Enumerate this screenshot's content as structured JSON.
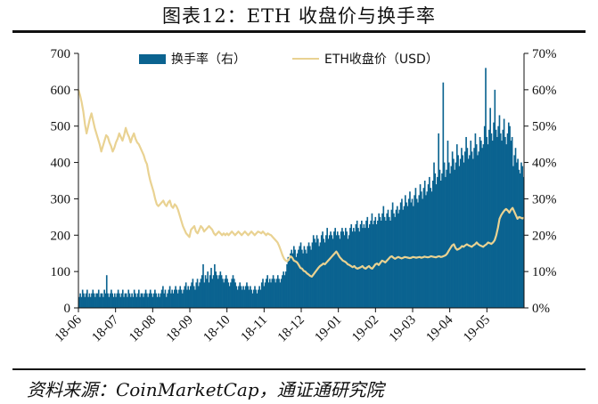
{
  "title": "图表12：ETH 收盘价与换手率",
  "source": "资料来源：CoinMarketCap，通证通研究院",
  "colors": {
    "turnover": "#0b6390",
    "price": "#e9d292",
    "axis": "#111111"
  },
  "chart_data": {
    "type": "bar",
    "x_tick_labels": [
      "18-06",
      "18-07",
      "18-08",
      "18-09",
      "18-10",
      "18-11",
      "18-12",
      "19-01",
      "19-02",
      "19-03",
      "19-04",
      "19-05"
    ],
    "left_axis": {
      "ylim": [
        0,
        700
      ],
      "ticks": [
        0,
        100,
        200,
        300,
        400,
        500,
        600,
        700
      ],
      "tick_labels": [
        "0",
        "100",
        "200",
        "300",
        "400",
        "500",
        "600",
        "700"
      ]
    },
    "right_axis": {
      "ylim": [
        0,
        70
      ],
      "ticks": [
        0,
        10,
        20,
        30,
        40,
        50,
        60,
        70
      ],
      "tick_labels": [
        "0%",
        "10%",
        "20%",
        "30%",
        "40%",
        "50%",
        "60%",
        "70%"
      ]
    },
    "legend": {
      "placement": "top",
      "entries": [
        "换手率（右）",
        "ETH收盘价（USD）"
      ]
    },
    "grid": false,
    "series": [
      {
        "name": "换手率（右）",
        "type": "bar",
        "axis": "right",
        "unit": "%",
        "values": [
          3,
          4,
          3,
          5,
          4,
          3,
          4,
          5,
          3,
          4,
          3,
          4,
          5,
          4,
          3,
          4,
          4,
          5,
          3,
          4,
          4,
          3,
          5,
          4,
          9,
          4,
          3,
          4,
          5,
          4,
          3,
          4,
          3,
          4,
          5,
          4,
          3,
          4,
          5,
          3,
          4,
          4,
          3,
          5,
          4,
          3,
          4,
          3,
          5,
          4,
          3,
          4,
          5,
          3,
          4,
          4,
          3,
          4,
          5,
          4,
          3,
          4,
          5,
          4,
          3,
          4,
          5,
          4,
          3,
          4,
          3,
          4,
          5,
          6,
          4,
          5,
          3,
          4,
          5,
          6,
          4,
          5,
          4,
          5,
          6,
          5,
          4,
          5,
          6,
          5,
          4,
          5,
          6,
          7,
          5,
          6,
          5,
          6,
          7,
          8,
          6,
          5,
          7,
          8,
          6,
          7,
          8,
          9,
          12,
          7,
          9,
          8,
          10,
          7,
          9,
          11,
          8,
          9,
          12,
          10,
          9,
          8,
          9,
          10,
          9,
          8,
          7,
          8,
          9,
          8,
          7,
          6,
          7,
          8,
          9,
          8,
          7,
          6,
          5,
          6,
          7,
          6,
          5,
          6,
          5,
          6,
          7,
          6,
          5,
          6,
          5,
          4,
          5,
          6,
          5,
          4,
          5,
          6,
          5,
          7,
          8,
          6,
          7,
          8,
          9,
          7,
          8,
          7,
          8,
          9,
          8,
          7,
          8,
          9,
          8,
          7,
          8,
          9,
          10,
          9,
          10,
          12,
          14,
          13,
          15,
          16,
          15,
          17,
          16,
          14,
          15,
          16,
          17,
          18,
          16,
          15,
          17,
          16,
          15,
          17,
          18,
          17,
          16,
          18,
          20,
          19,
          18,
          20,
          19,
          17,
          18,
          20,
          21,
          19,
          18,
          20,
          22,
          19,
          20,
          21,
          20,
          19,
          21,
          22,
          20,
          21,
          20,
          19,
          21,
          22,
          21,
          20,
          22,
          21,
          19,
          20,
          22,
          23,
          21,
          22,
          21,
          23,
          24,
          22,
          21,
          23,
          24,
          22,
          23,
          22,
          24,
          25,
          22,
          23,
          24,
          26,
          23,
          24,
          25,
          23,
          24,
          26,
          25,
          24,
          26,
          28,
          25,
          24,
          26,
          27,
          25,
          24,
          27,
          29,
          26,
          25,
          27,
          28,
          26,
          27,
          29,
          30,
          27,
          28,
          31,
          29,
          28,
          30,
          32,
          29,
          30,
          28,
          31,
          33,
          30,
          29,
          31,
          34,
          32,
          30,
          33,
          35,
          31,
          32,
          34,
          36,
          33,
          32,
          35,
          40,
          37,
          34,
          36,
          48,
          38,
          35,
          37,
          62,
          40,
          36,
          38,
          46,
          40,
          37,
          39,
          43,
          41,
          38,
          40,
          45,
          42,
          39,
          41,
          44,
          42,
          40,
          43,
          47,
          44,
          41,
          42,
          46,
          43,
          41,
          44,
          48,
          45,
          42,
          43,
          47,
          46,
          44,
          45,
          50,
          66,
          47,
          45,
          49,
          55,
          48,
          46,
          51,
          60,
          49,
          47,
          50,
          53,
          48,
          46,
          49,
          52,
          47,
          45,
          48,
          51,
          50,
          46,
          47,
          39,
          42,
          44,
          40,
          41,
          38,
          37,
          40,
          39,
          36
        ]
      },
      {
        "name": "ETH收盘价（USD）",
        "type": "line",
        "axis": "left",
        "unit": "USD",
        "values": [
          600,
          585,
          565,
          540,
          505,
          480,
          500,
          520,
          535,
          515,
          495,
          480,
          465,
          450,
          430,
          445,
          460,
          475,
          470,
          455,
          445,
          430,
          440,
          455,
          465,
          480,
          470,
          460,
          475,
          495,
          480,
          470,
          455,
          470,
          480,
          465,
          455,
          450,
          440,
          430,
          420,
          405,
          395,
          370,
          350,
          335,
          320,
          300,
          285,
          280,
          285,
          290,
          295,
          285,
          280,
          290,
          295,
          280,
          275,
          285,
          280,
          270,
          255,
          240,
          225,
          215,
          205,
          200,
          195,
          215,
          220,
          225,
          210,
          205,
          215,
          225,
          220,
          210,
          215,
          220,
          225,
          220,
          215,
          205,
          200,
          205,
          210,
          205,
          200,
          205,
          200,
          205,
          200,
          205,
          210,
          205,
          200,
          205,
          210,
          205,
          200,
          205,
          210,
          205,
          200,
          205,
          210,
          205,
          200,
          205,
          210,
          208,
          205,
          210,
          205,
          200,
          205,
          202,
          200,
          195,
          190,
          185,
          180,
          170,
          158,
          145,
          135,
          130,
          128,
          135,
          142,
          138,
          130,
          128,
          125,
          118,
          110,
          108,
          102,
          100,
          95,
          92,
          88,
          86,
          92,
          98,
          104,
          110,
          115,
          118,
          122,
          120,
          125,
          130,
          135,
          140,
          145,
          150,
          155,
          148,
          140,
          135,
          130,
          128,
          125,
          120,
          118,
          115,
          112,
          115,
          110,
          108,
          110,
          112,
          115,
          110,
          108,
          112,
          115,
          110,
          108,
          114,
          120,
          122,
          118,
          124,
          130,
          128,
          125,
          130,
          135,
          140,
          142,
          138,
          135,
          138,
          140,
          138,
          136,
          138,
          140,
          139,
          138,
          137,
          138,
          140,
          139,
          138,
          139,
          140,
          138,
          139,
          141,
          140,
          139,
          140,
          142,
          141,
          140,
          139,
          141,
          142,
          140,
          141,
          143,
          145,
          150,
          158,
          165,
          172,
          175,
          165,
          160,
          162,
          165,
          170,
          168,
          172,
          175,
          172,
          170,
          168,
          172,
          175,
          180,
          175,
          172,
          170,
          168,
          172,
          175,
          180,
          178,
          176,
          180,
          186,
          200,
          220,
          245,
          255,
          262,
          268,
          272,
          268,
          262,
          270,
          275,
          265,
          255,
          245,
          250,
          248,
          246,
          248
        ]
      }
    ]
  }
}
